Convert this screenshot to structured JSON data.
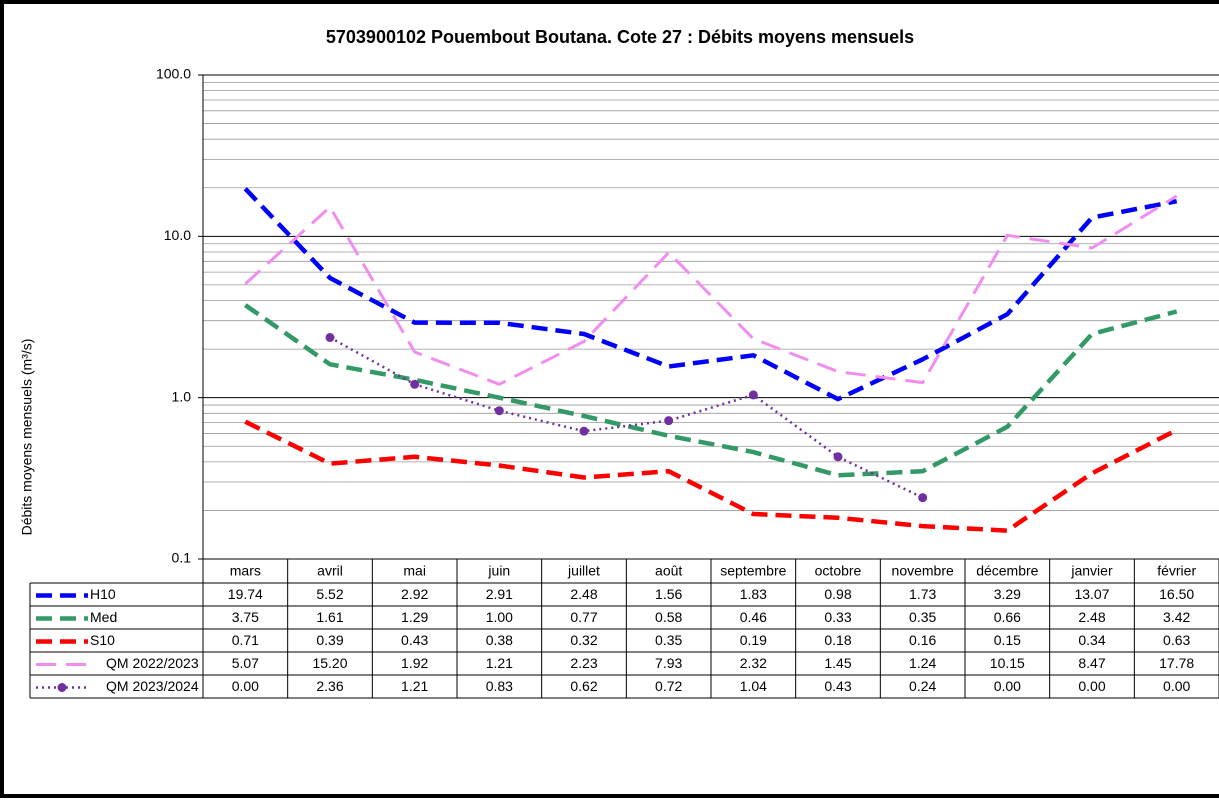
{
  "chart_data": {
    "type": "line",
    "title": "5703900102 Pouembout Boutana. Cote 27 : Débits moyens mensuels",
    "y_label": "Débits moyens mensuels (m³/s)",
    "log_scale": true,
    "grid": true,
    "ylim": [
      0.1,
      100
    ],
    "yticks": [
      0.1,
      {
        "value": 1,
        "label": "1.0"
      },
      {
        "value": 10,
        "label": "10.0"
      },
      {
        "value": 100,
        "label": "100.0"
      }
    ],
    "categories": [
      "mars",
      "avril",
      "mai",
      "juin",
      "juillet",
      "août",
      "septembre",
      "octobre",
      "novembre",
      "décembre",
      "janvier",
      "février"
    ],
    "series": [
      {
        "name": "H10",
        "color": "#0000ff",
        "style": "dashed",
        "values": [
          19.74,
          5.52,
          2.92,
          2.91,
          2.48,
          1.56,
          1.83,
          0.98,
          1.73,
          3.29,
          13.07,
          16.5
        ],
        "value_labels": [
          "19.74",
          "5.52",
          "2.92",
          "2.91",
          "2.48",
          "1.56",
          "1.83",
          "0.98",
          "1.73",
          "3.29",
          "13.07",
          "16.50"
        ]
      },
      {
        "name": "Med",
        "color": "#339966",
        "style": "dashed",
        "values": [
          3.75,
          1.61,
          1.29,
          1,
          0.77,
          0.58,
          0.46,
          0.33,
          0.35,
          0.66,
          2.48,
          3.42
        ],
        "value_labels": [
          "3.75",
          "1.61",
          "1.29",
          "1.00",
          "0.77",
          "0.58",
          "0.46",
          "0.33",
          "0.35",
          "0.66",
          "2.48",
          "3.42"
        ]
      },
      {
        "name": "S10",
        "color": "#ff0000",
        "style": "dashed",
        "values": [
          0.71,
          0.39,
          0.43,
          0.38,
          0.32,
          0.35,
          0.19,
          0.18,
          0.16,
          0.15,
          0.34,
          0.63
        ],
        "value_labels": [
          "0.71",
          "0.39",
          "0.43",
          "0.38",
          "0.32",
          "0.35",
          "0.19",
          "0.18",
          "0.16",
          "0.15",
          "0.34",
          "0.63"
        ]
      },
      {
        "name": "QM 2022/2023",
        "color": "#f08ef0",
        "style": "light-dashed",
        "values": [
          5.07,
          15.2,
          1.92,
          1.21,
          2.23,
          7.93,
          2.32,
          1.45,
          1.24,
          10.15,
          8.47,
          17.78
        ],
        "value_labels": [
          "5.07",
          "15.20",
          "1.92",
          "1.21",
          "2.23",
          "7.93",
          "2.32",
          "1.45",
          "1.24",
          "10.15",
          "8.47",
          "17.78"
        ]
      },
      {
        "name": "QM 2023/2024",
        "color": "#7030a0",
        "style": "dotted-markers",
        "values": [
          0,
          2.36,
          1.21,
          0.83,
          0.62,
          0.72,
          1.04,
          0.43,
          0.24,
          0,
          0,
          0
        ],
        "value_labels": [
          "0.00",
          "2.36",
          "1.21",
          "0.83",
          "0.62",
          "0.72",
          "1.04",
          "0.43",
          "0.24",
          "0.00",
          "0.00",
          "0.00"
        ]
      }
    ]
  }
}
